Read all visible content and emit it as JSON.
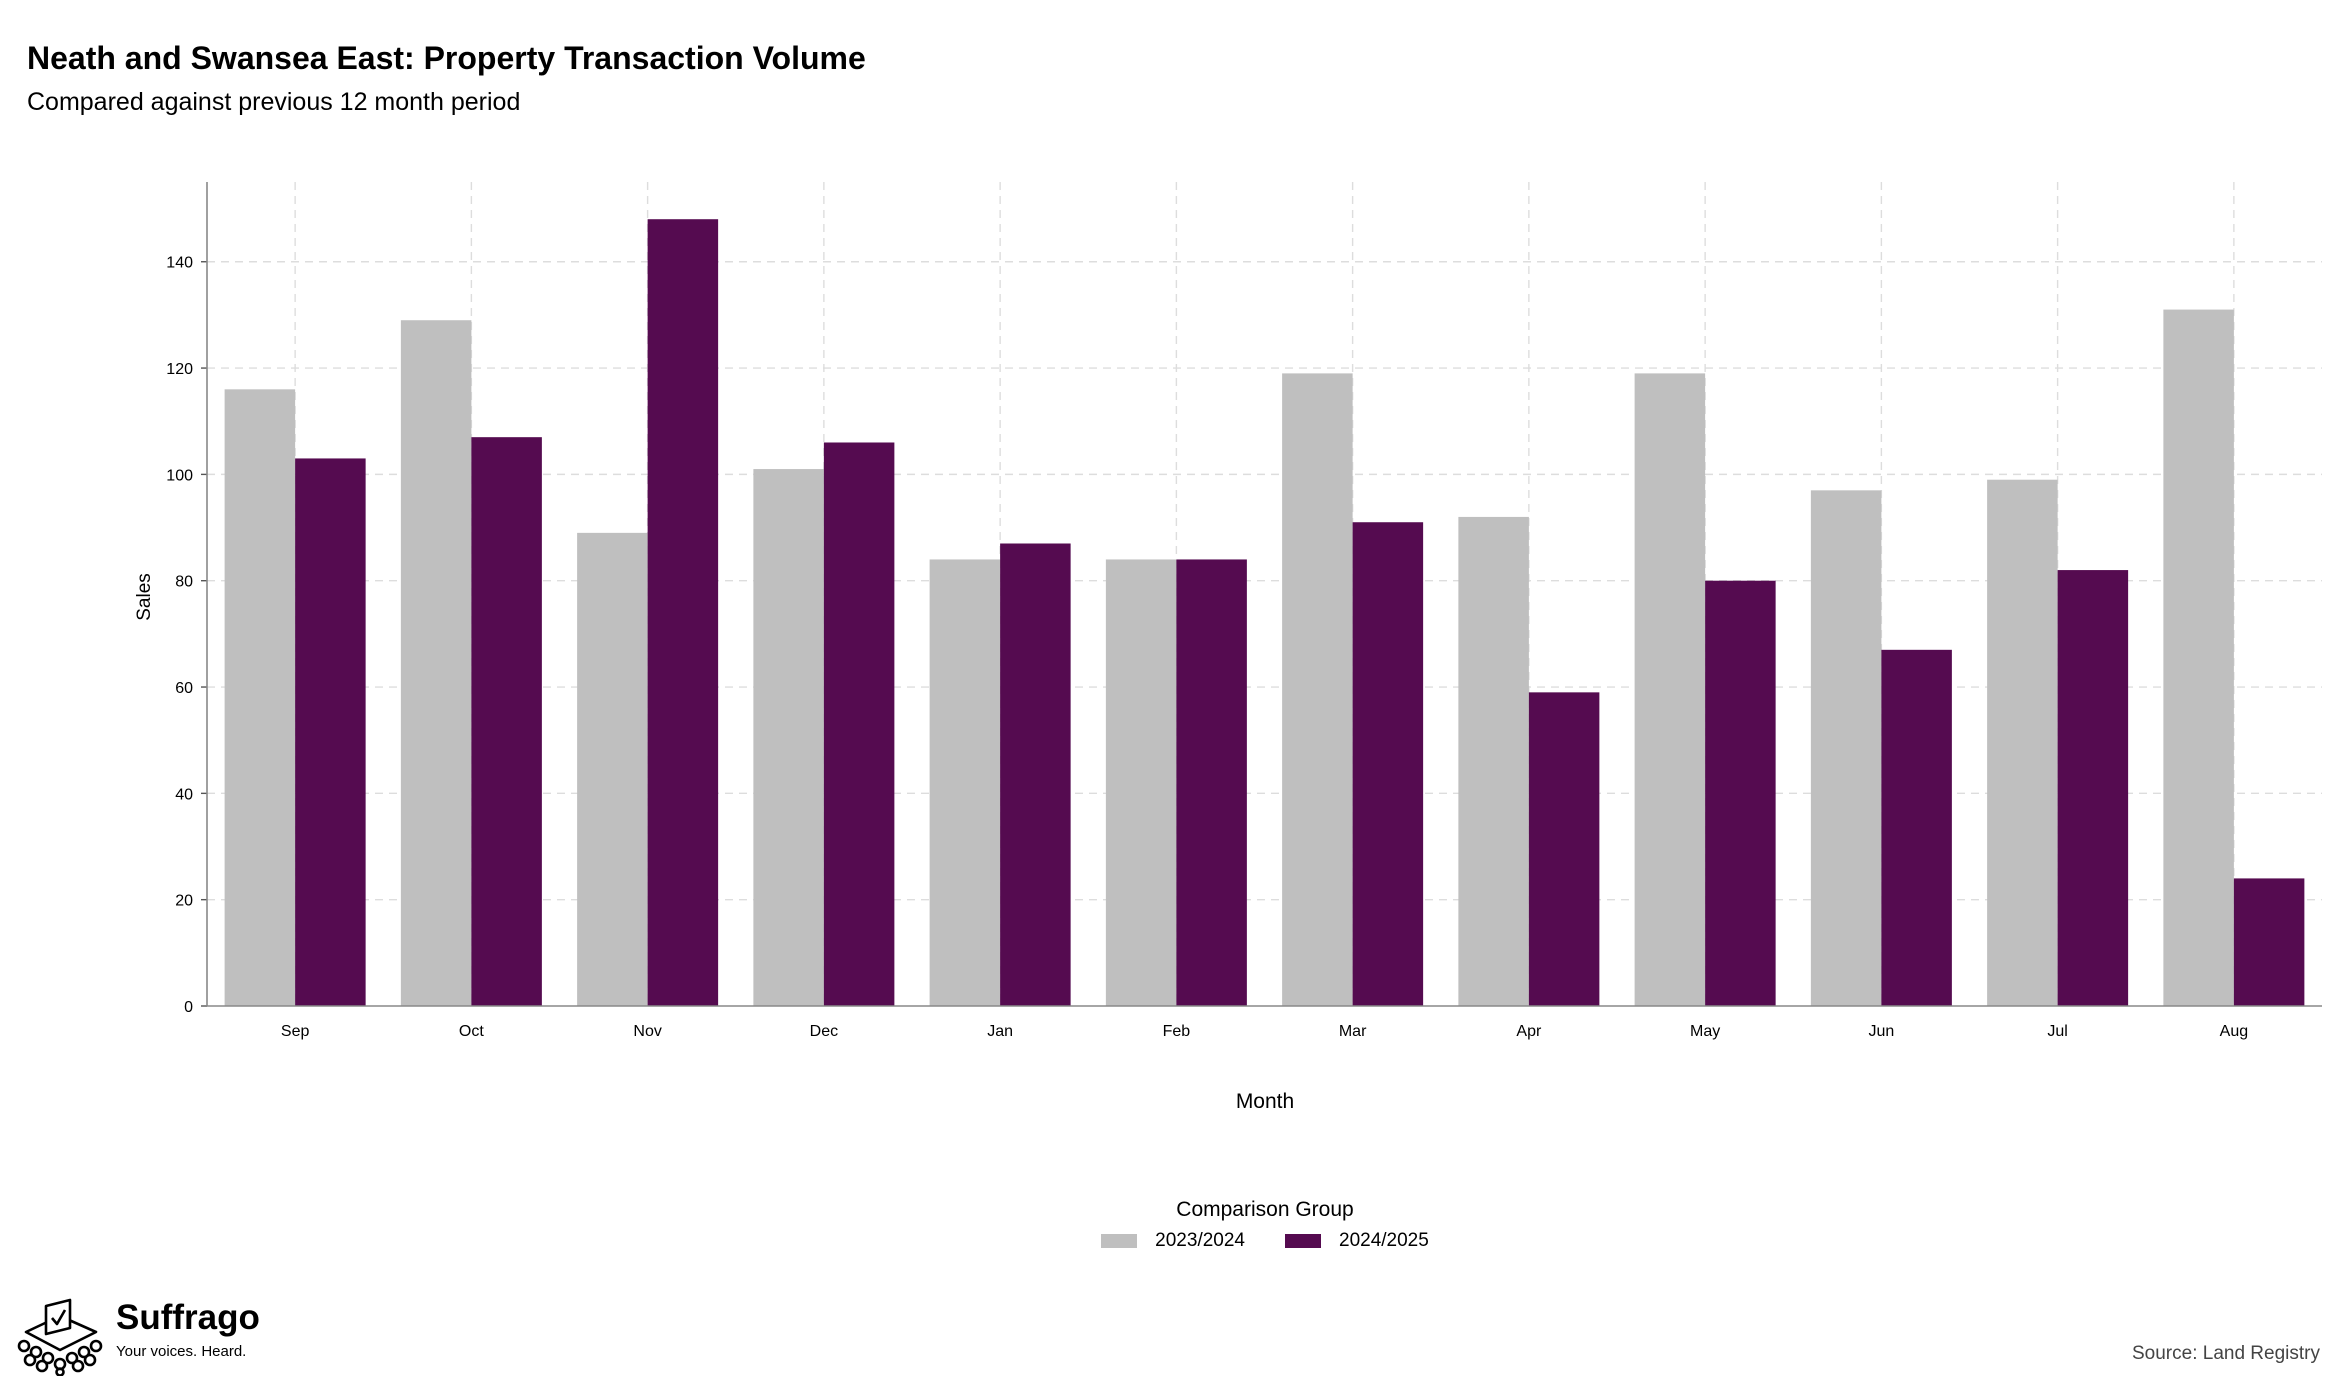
{
  "header": {
    "title": "Neath and Swansea East: Property Transaction Volume",
    "subtitle": "Compared against previous 12 month period"
  },
  "chart_data": {
    "type": "bar",
    "xlabel": "Month",
    "ylabel": "Sales",
    "categories": [
      "Sep",
      "Oct",
      "Nov",
      "Dec",
      "Jan",
      "Feb",
      "Mar",
      "Apr",
      "May",
      "Jun",
      "Jul",
      "Aug"
    ],
    "series": [
      {
        "name": "2023/2024",
        "color": "#bfbfbf",
        "values": [
          116,
          129,
          89,
          101,
          84,
          84,
          119,
          92,
          119,
          97,
          99,
          131
        ]
      },
      {
        "name": "2024/2025",
        "color": "#550b50",
        "values": [
          103,
          107,
          148,
          106,
          87,
          84,
          91,
          59,
          80,
          67,
          82,
          24
        ]
      }
    ],
    "ylim": [
      0,
      155
    ],
    "yticks": [
      0,
      20,
      40,
      60,
      80,
      100,
      120,
      140
    ],
    "grid": true,
    "legend": {
      "title": "Comparison Group",
      "position": "bottom"
    }
  },
  "branding": {
    "logo_name": "Suffrago",
    "logo_tagline": "Your voices. Heard."
  },
  "footer": {
    "source": "Source: Land Registry"
  }
}
